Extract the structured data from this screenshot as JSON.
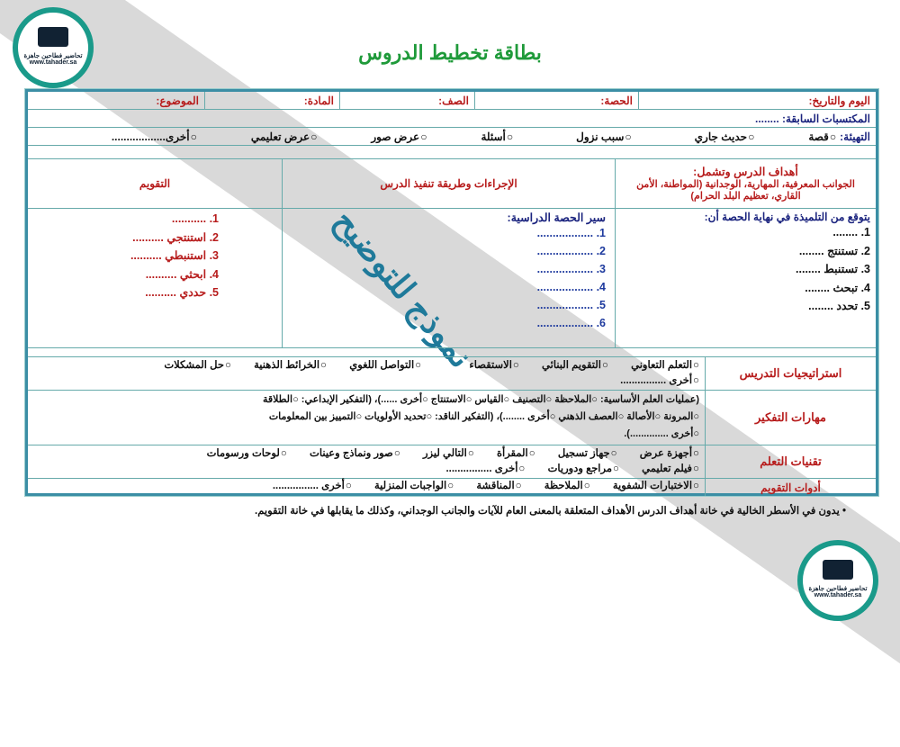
{
  "title": "بطاقة تخطيط الدروس",
  "header": {
    "date": "اليوم والتاريخ:",
    "period": "الحصة:",
    "class": "الصف:",
    "subject": "المادة:",
    "topic": "الموضوع:"
  },
  "prior": "المكتسبات السابقة: ........",
  "warmup": {
    "label": "التهيئة:",
    "options": [
      "قصة",
      "حديث جاري",
      "سبب نزول",
      "أسئلة",
      "عرض صور",
      "عرض تعليمي",
      "أخرى.................."
    ]
  },
  "columns": {
    "goals_title": "أهداف الدرس وتشمل:",
    "goals_sub": "الجوانب المعرفية، المهارية، الوجدانية (المواطنة، الأمن القاري، تعظيم البلد الحرام)",
    "procedures": "الإجراءات وطريقة تنفيذ الدرس",
    "evaluation": "التقويم"
  },
  "goals": {
    "intro": "يتوقع من التلميذة في نهاية الحصة أن:",
    "items": [
      "1. ........",
      "2. تستنتج ........",
      "3. تستنبط ........",
      "4. تبحث ........",
      "5. تحدد ........"
    ]
  },
  "procedures": {
    "title": "سير الحصة الدراسية:",
    "items": [
      "1. ..................",
      "2. ..................",
      "3. ..................",
      "4. ..................",
      "5. ..................",
      "6. .................."
    ]
  },
  "evaluation": {
    "items": [
      "1. ...........",
      "2. استنتجي ..........",
      "3. استنبطي ..........",
      "4. ابحثي ..........",
      "5. حددي .........."
    ]
  },
  "strategies": {
    "label": "استراتيجيات التدريس",
    "options": [
      "التعلم التعاوني",
      "التقويم البنائي",
      "الاستقصاء",
      "التواصل اللغوي",
      "الخرائط الذهنية",
      "حل المشكلات",
      "أخرى ................"
    ]
  },
  "thinking": {
    "label": "مهارات التفكير",
    "line1": "(عمليات العلم الأساسية: ○الملاحظة ○التصنيف ○القياس ○الاستنتاج ○أخرى ......)، (التفكير الإبداعي: ○الطلاقة",
    "line2": "○المرونة ○الأصالة ○العصف الذهني ○أخرى ........)، (التفكير الناقد: ○تحديد الأولويات ○التمييز بين المعلومات",
    "line3": "○أخرى ..............)."
  },
  "tech": {
    "label": "تقنيات التعلم",
    "options1": [
      "أجهزة عرض",
      "جهاز تسجيل",
      "المقرأة",
      "التالي ليزر",
      "صور ونماذج وعينات",
      "لوحات ورسومات"
    ],
    "options2": [
      "فيلم تعليمي",
      "مراجع ودوريات",
      "أخرى ................"
    ]
  },
  "tools": {
    "label": "أدوات التقويم",
    "options": [
      "الاختبارات الشفوية",
      "الملاحظة",
      "المناقشة",
      "الواجبات المنزلية",
      "أخرى ................"
    ]
  },
  "note": "• يدون في الأسطر الخالية في خانة أهداف الدرس الأهداف المتعلقة بالمعنى العام للآيات والجانب الوجداني، وكذلك ما يقابلها في خانة التقويم.",
  "watermark": "نموذج للتوضيح",
  "logo": {
    "name": "تحاضير فطاحين جاهزة",
    "url": "www.tahader.sa"
  }
}
